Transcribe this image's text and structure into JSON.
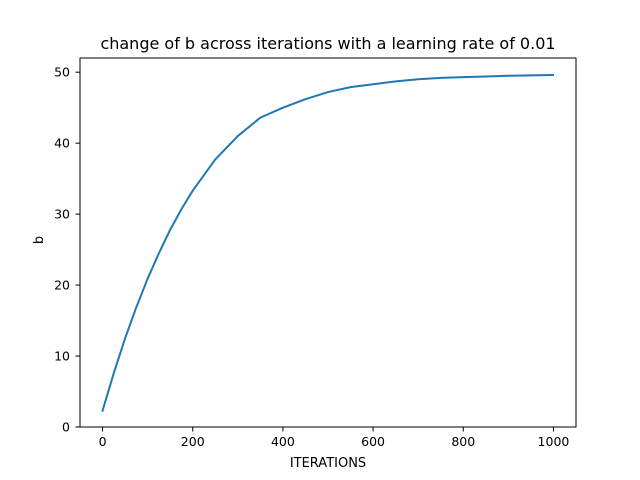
{
  "chart_data": {
    "type": "line",
    "title": "change of b across iterations with a learning rate of 0.01",
    "xlabel": "ITERATIONS",
    "ylabel": "b",
    "xlim": [
      -50,
      1050
    ],
    "ylim": [
      0,
      52
    ],
    "x_ticks": [
      0,
      200,
      400,
      600,
      800,
      1000
    ],
    "y_ticks": [
      0,
      10,
      20,
      30,
      40,
      50
    ],
    "grid": false,
    "legend": "none",
    "series": [
      {
        "color": "#1f77b4",
        "x": [
          0,
          25,
          50,
          75,
          100,
          125,
          150,
          175,
          200,
          250,
          300,
          350,
          400,
          450,
          500,
          550,
          600,
          650,
          700,
          750,
          800,
          850,
          900,
          950,
          999
        ],
        "y": [
          2.3,
          7.6,
          12.5,
          16.9,
          20.9,
          24.5,
          27.8,
          30.7,
          33.3,
          37.7,
          41.0,
          43.6,
          45.0,
          46.2,
          47.2,
          47.9,
          48.3,
          48.7,
          49.0,
          49.2,
          49.3,
          49.4,
          49.5,
          49.55,
          49.6
        ]
      }
    ]
  }
}
